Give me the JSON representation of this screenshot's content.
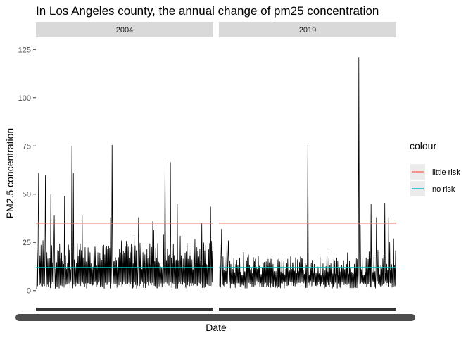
{
  "chart_data": {
    "type": "line",
    "title": "In Los Angeles county, the annual change of pm25 concentration",
    "xlabel": "Date",
    "ylabel": "PM2.5 concentration",
    "ylim": [
      0,
      125
    ],
    "yticks": [
      0,
      25,
      50,
      75,
      100,
      125
    ],
    "grid": false,
    "panels": [
      {
        "label": "2004",
        "peaks": [
          {
            "pos": 0.01,
            "value": 61
          },
          {
            "pos": 0.05,
            "value": 60
          },
          {
            "pos": 0.08,
            "value": 50
          },
          {
            "pos": 0.1,
            "value": 39
          },
          {
            "pos": 0.16,
            "value": 49
          },
          {
            "pos": 0.2,
            "value": 75
          },
          {
            "pos": 0.21,
            "value": 61
          },
          {
            "pos": 0.26,
            "value": 39
          },
          {
            "pos": 0.42,
            "value": 38
          },
          {
            "pos": 0.43,
            "value": 75.5
          },
          {
            "pos": 0.58,
            "value": 38
          },
          {
            "pos": 0.66,
            "value": 36
          },
          {
            "pos": 0.73,
            "value": 67.5
          },
          {
            "pos": 0.76,
            "value": 66.5
          },
          {
            "pos": 0.8,
            "value": 45
          },
          {
            "pos": 0.94,
            "value": 35
          },
          {
            "pos": 0.99,
            "value": 43.5
          }
        ]
      },
      {
        "label": "2019",
        "peaks": [
          {
            "pos": 0.01,
            "value": 32
          },
          {
            "pos": 0.05,
            "value": 26
          },
          {
            "pos": 0.5,
            "value": 75.5
          },
          {
            "pos": 0.79,
            "value": 121
          },
          {
            "pos": 0.8,
            "value": 34
          },
          {
            "pos": 0.86,
            "value": 45
          },
          {
            "pos": 0.89,
            "value": 38
          },
          {
            "pos": 0.94,
            "value": 45.5
          },
          {
            "pos": 0.96,
            "value": 38
          },
          {
            "pos": 0.99,
            "value": 27
          }
        ]
      }
    ],
    "reference_lines": [
      {
        "name": "little risk",
        "value": 35,
        "color": "#f8766d"
      },
      {
        "name": "no risk",
        "value": 12,
        "color": "#00bfc4"
      }
    ],
    "legend": {
      "title": "colour",
      "position": "right"
    },
    "panel_background": "#ffffff",
    "strip_background": "#d9d9d9",
    "line_color": "#000000"
  }
}
